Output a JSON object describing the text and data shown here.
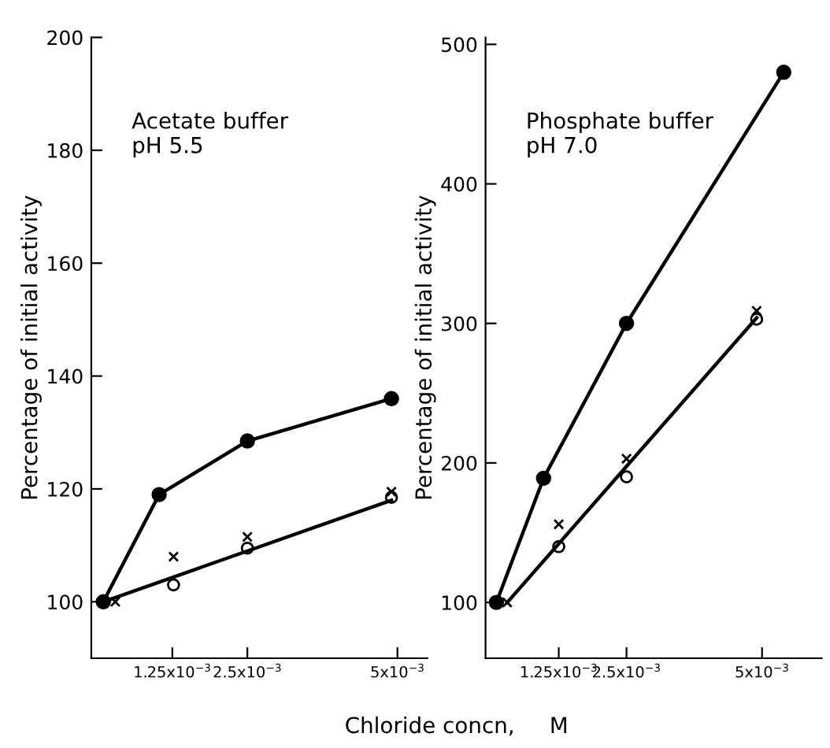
{
  "chart_data": [
    {
      "type": "line",
      "ylabel": "Percentage of initial activity",
      "xlabel": "Chloride concn,     M",
      "annotations": [
        "Acetate buffer\npH 5.5"
      ],
      "xlim": [
        -0.0001,
        0.0055
      ],
      "ylim": [
        90,
        200
      ],
      "yticks": [
        100,
        120,
        140,
        160,
        180,
        200
      ],
      "xticks": [
        {
          "value": 0.00125,
          "label": "1.25x10$^{−3}$"
        },
        {
          "value": 0.0025,
          "label": "2.5x10$^{−3}$"
        },
        {
          "value": 0.005,
          "label": "5x10$^{−3}$"
        }
      ],
      "grid": false,
      "legend": false,
      "series": [
        {
          "color": "#000000",
          "marker": "circle",
          "x": [
            0.0001,
            0.00103,
            0.0025,
            0.0049
          ],
          "values": [
            100,
            119,
            128.5,
            136
          ]
        },
        {
          "type": "scatter",
          "color": "#ffffff",
          "marker": "circle",
          "x": [
            0.00127,
            0.0025,
            0.0049
          ],
          "values": [
            103,
            109.5,
            118.5
          ]
        },
        {
          "type": "scatter",
          "color": "#000000",
          "marker": "cross",
          "x": [
            0.0003,
            0.00127,
            0.0025,
            0.0049
          ],
          "values": [
            100,
            108,
            111.5,
            119.5
          ]
        },
        {
          "color": "#000000",
          "marker": "none",
          "x": [
            0.0001,
            0.0049
          ],
          "values": [
            100,
            118
          ]
        }
      ]
    },
    {
      "type": "line",
      "ylabel": "Percentage of initial activity",
      "annotations": [
        "Phosphate buffer\npH 7.0"
      ],
      "xlim": [
        -0.0001,
        0.0061
      ],
      "ylim": [
        60,
        505
      ],
      "yticks": [
        100,
        200,
        300,
        400,
        500
      ],
      "xticks": [
        {
          "value": 0.00125,
          "label": "1.25x10$^{−3}$"
        },
        {
          "value": 0.0025,
          "label": "2.5x10$^{−3}$"
        },
        {
          "value": 0.005,
          "label": "5x10$^{−3}$"
        }
      ],
      "grid": false,
      "legend": false,
      "series": [
        {
          "color": "#000000",
          "marker": "circle",
          "x": [
            0.0001,
            0.00097,
            0.0025,
            0.0054
          ],
          "values": [
            100,
            189,
            300,
            480
          ]
        },
        {
          "type": "scatter",
          "color": "#ffffff",
          "marker": "circle",
          "x": [
            0.00125,
            0.0025,
            0.0049
          ],
          "values": [
            140,
            190,
            303
          ]
        },
        {
          "type": "scatter",
          "color": "#000000",
          "marker": "cross",
          "x": [
            0.0003,
            0.00125,
            0.0025,
            0.0049
          ],
          "values": [
            100,
            156,
            203,
            309
          ]
        },
        {
          "color": "#000000",
          "marker": "none",
          "x": [
            0.0003,
            0.0049
          ],
          "values": [
            100,
            304
          ]
        }
      ]
    }
  ]
}
